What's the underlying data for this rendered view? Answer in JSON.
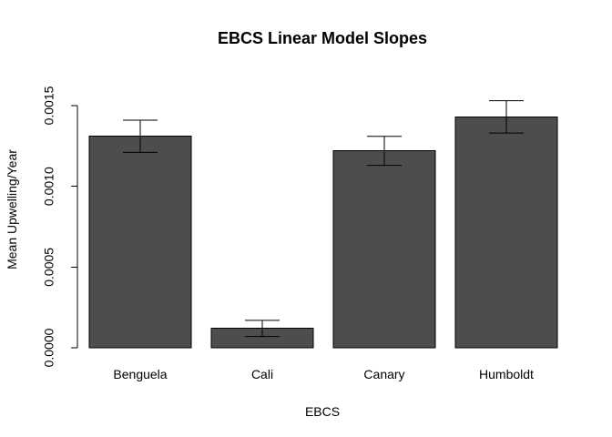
{
  "chart_data": {
    "type": "bar",
    "title": "EBCS Linear Model Slopes",
    "xlabel": "EBCS",
    "ylabel": "Mean Upwelling/Year",
    "categories": [
      "Benguela",
      "Cali",
      "Canary",
      "Humboldt"
    ],
    "values": [
      0.00131,
      0.00012,
      0.00122,
      0.00143
    ],
    "error_bars": {
      "lower": [
        0.00121,
        7e-05,
        0.00113,
        0.00133
      ],
      "upper": [
        0.00141,
        0.00017,
        0.00131,
        0.00153
      ]
    },
    "ylim": [
      0,
      0.0015
    ],
    "yticks": [
      {
        "value": 0.0,
        "label": "0.0000"
      },
      {
        "value": 0.0005,
        "label": "0.0005"
      },
      {
        "value": 0.001,
        "label": "0.0010"
      },
      {
        "value": 0.0015,
        "label": "0.0015"
      }
    ],
    "colors": {
      "bar": "#4d4d4d",
      "outline": "#000000",
      "background": "#ffffff"
    },
    "grid": false,
    "legend": "none"
  }
}
